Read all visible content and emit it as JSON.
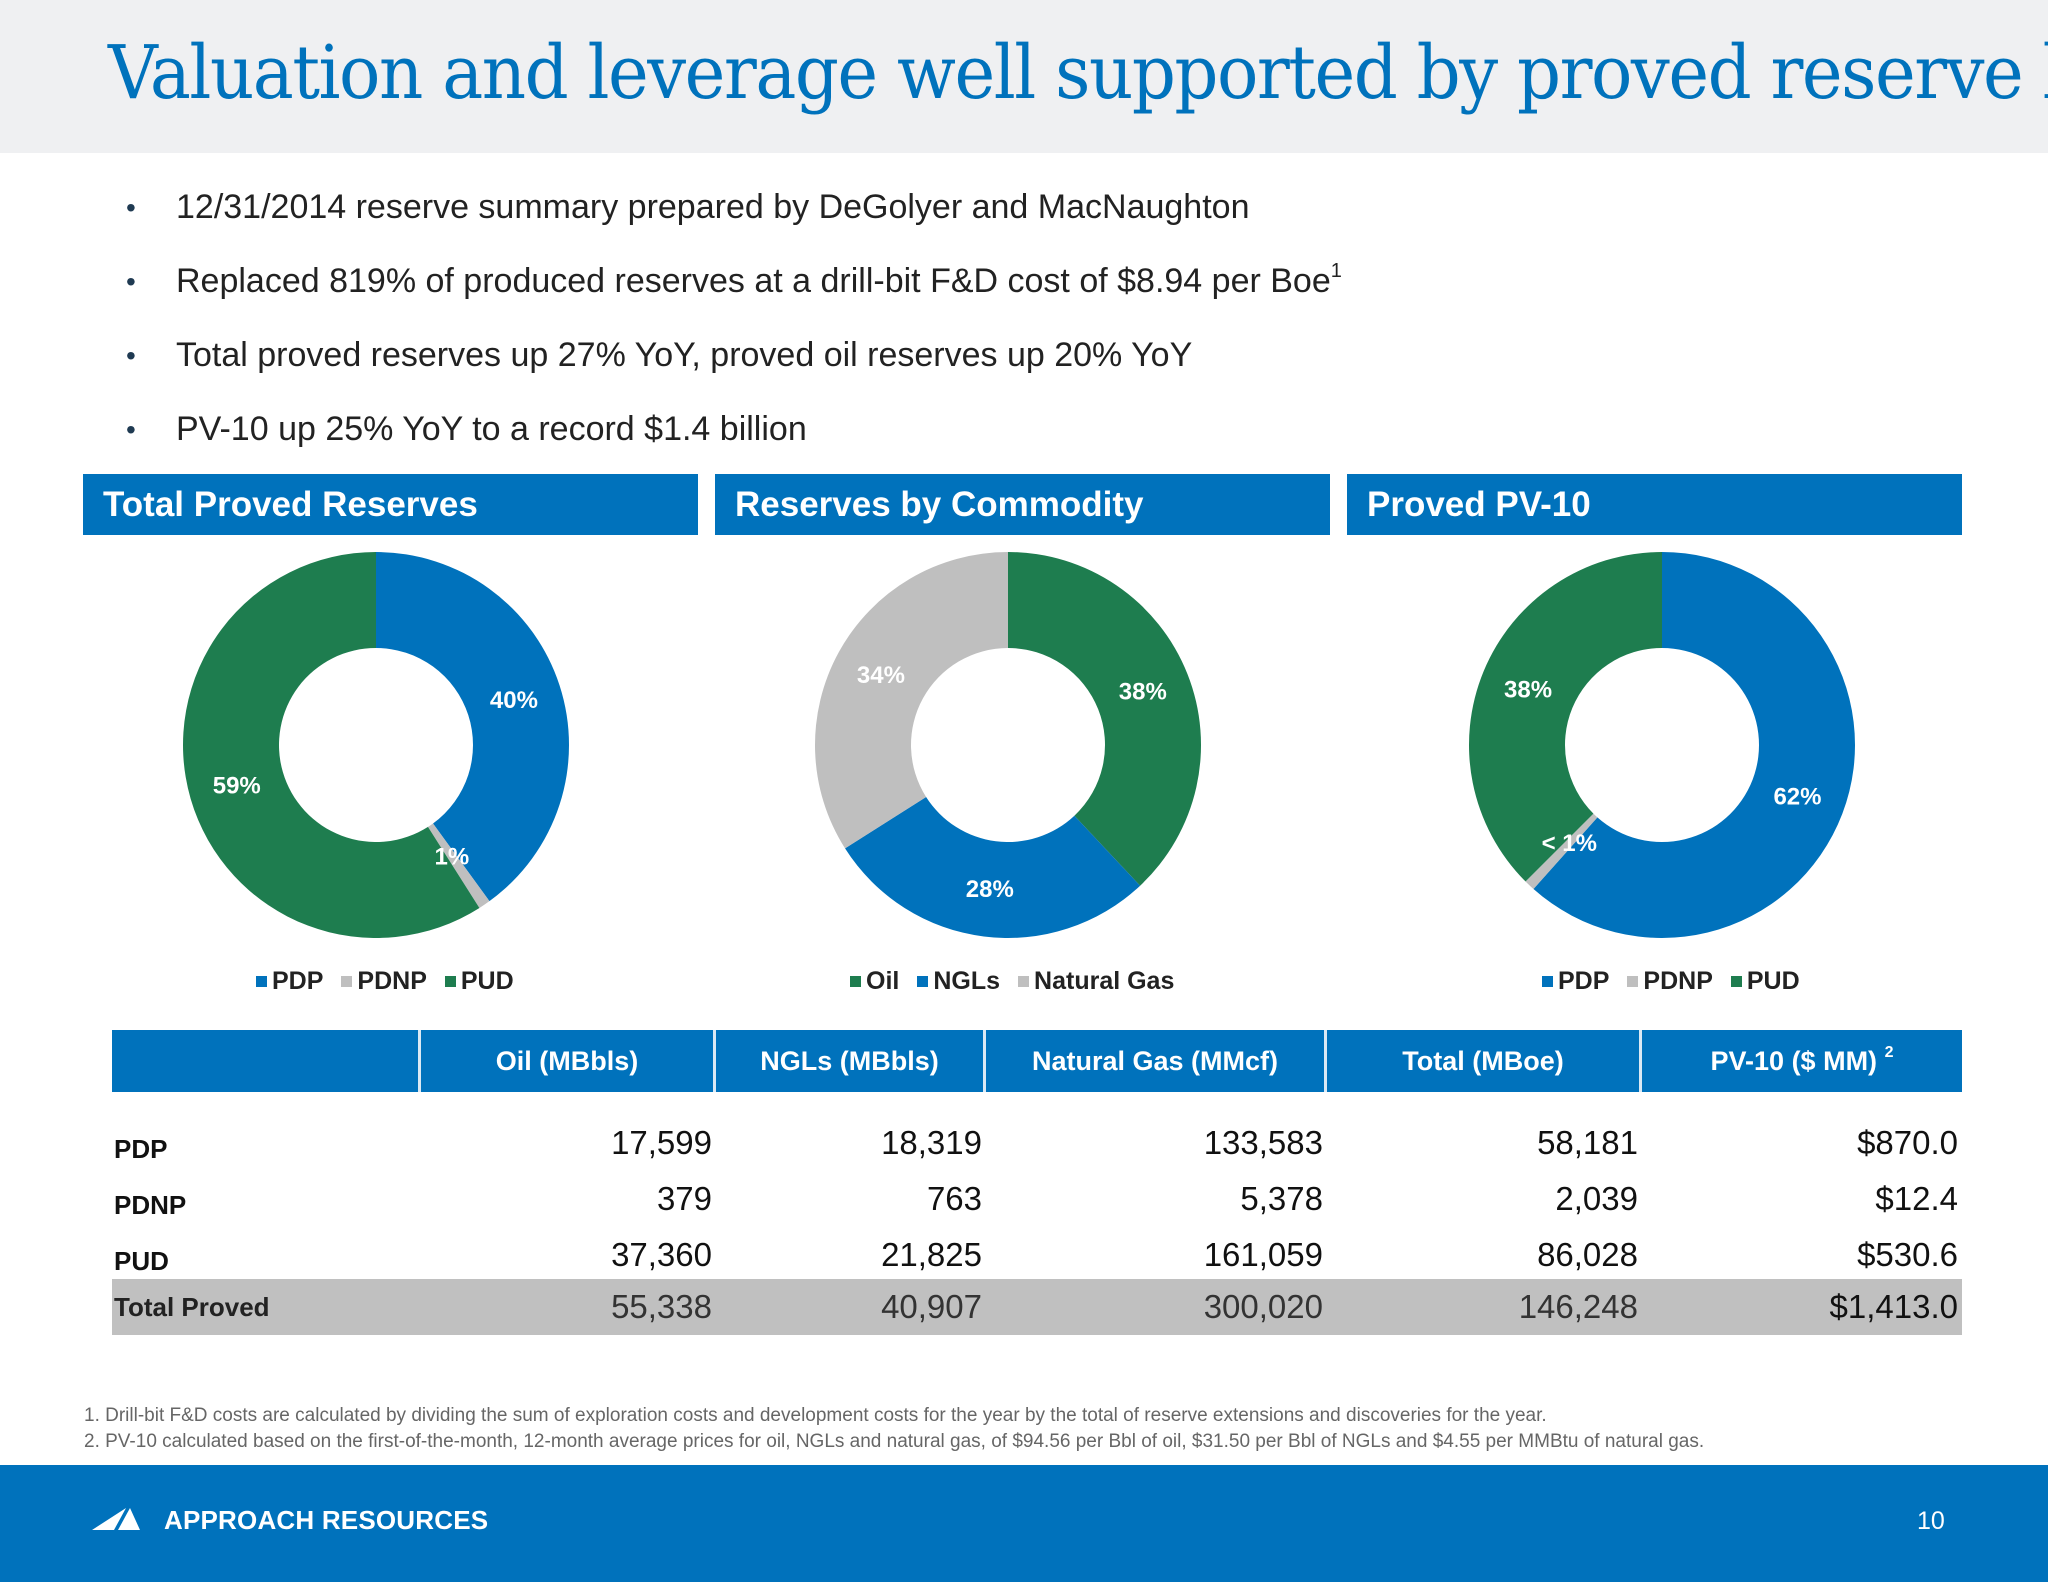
{
  "title": "Valuation and leverage well supported by proved reserve base",
  "bullets": [
    {
      "text": "12/31/2014 reserve summary prepared by DeGolyer and MacNaughton",
      "sup": ""
    },
    {
      "text": "Replaced 819% of produced reserves at a drill-bit F&D cost of $8.94 per Boe",
      "sup": "1"
    },
    {
      "text": "Total proved reserves up 27% YoY, proved oil reserves up 20% YoY",
      "sup": ""
    },
    {
      "text": "PV-10 up 25% YoY to a record $1.4 billion",
      "sup": ""
    }
  ],
  "colors": {
    "brand_blue": "#0072bc",
    "green": "#1e7d4f",
    "gray": "#bfbfbf"
  },
  "chart_data": [
    {
      "type": "pie",
      "title": "Total Proved Reserves",
      "categories": [
        "PDP",
        "PDNP",
        "PUD"
      ],
      "values": [
        40,
        1,
        59
      ],
      "labels": [
        "40%",
        "1%",
        "59%"
      ],
      "colors": [
        "#0072bc",
        "#bfbfbf",
        "#1e7d4f"
      ],
      "donut": true,
      "legend": "bottom"
    },
    {
      "type": "pie",
      "title": "Reserves by Commodity",
      "categories": [
        "Oil",
        "NGLs",
        "Natural Gas"
      ],
      "values": [
        38,
        28,
        34
      ],
      "labels": [
        "38%",
        "28%",
        "34%"
      ],
      "colors": [
        "#1e7d4f",
        "#0072bc",
        "#bfbfbf"
      ],
      "donut": true,
      "legend": "bottom"
    },
    {
      "type": "pie",
      "title": "Proved PV-10",
      "categories": [
        "PDP",
        "PDNP",
        "PUD"
      ],
      "values": [
        61.6,
        0.9,
        37.5
      ],
      "labels": [
        "62%",
        "< 1%",
        "38%"
      ],
      "colors": [
        "#0072bc",
        "#bfbfbf",
        "#1e7d4f"
      ],
      "donut": true,
      "legend": "bottom"
    }
  ],
  "table": {
    "headers": [
      "",
      "Oil (MBbls)",
      "NGLs (MBbls)",
      "Natural Gas (MMcf)",
      "Total (MBoe)",
      "PV-10 ($ MM)"
    ],
    "header_sup": [
      "",
      "",
      "",
      "",
      "",
      "2"
    ],
    "rows": [
      {
        "label": "PDP",
        "values": [
          "17,599",
          "18,319",
          "133,583",
          "58,181",
          "$870.0"
        ]
      },
      {
        "label": "PDNP",
        "values": [
          "379",
          "763",
          "5,378",
          "2,039",
          "$12.4"
        ]
      },
      {
        "label": "PUD",
        "values": [
          "37,360",
          "21,825",
          "161,059",
          "86,028",
          "$530.6"
        ]
      }
    ],
    "total": {
      "label": "Total Proved",
      "values": [
        "55,338",
        "40,907",
        "300,020",
        "146,248",
        "$1,413.0"
      ]
    }
  },
  "footnotes": [
    "1. Drill-bit F&D costs are calculated by dividing the sum of exploration costs and development costs for the year by the total of reserve extensions and discoveries for the year.",
    "2. PV-10 calculated based on the first-of-the-month, 12-month average prices for oil, NGLs and natural gas, of $94.56 per Bbl of oil, $31.50 per Bbl of NGLs and $4.55 per MMBtu of natural gas."
  ],
  "footer": {
    "company": "APPROACH RESOURCES",
    "logo_icon": "approach-logo-icon",
    "page_number": "10"
  }
}
